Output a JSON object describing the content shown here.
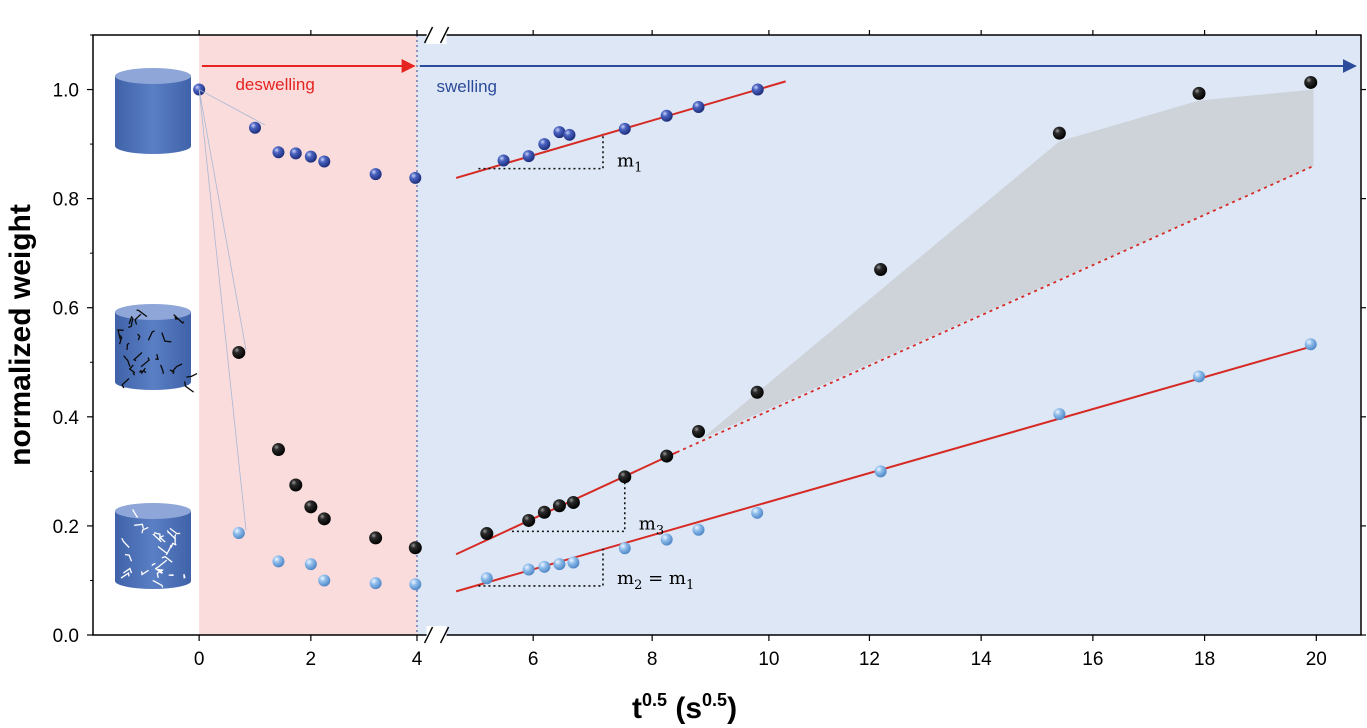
{
  "chart_data": {
    "type": "scatter",
    "title": "",
    "xlabel": "t",
    "xlabel_sup": "0.5",
    "xlabel_unit_open": " (s",
    "xlabel_unit_sup": "0.5",
    "xlabel_unit_close": ")",
    "ylabel": "normalized weight",
    "xlim": [
      -1.9,
      20.8
    ],
    "ylim": [
      0.0,
      1.1
    ],
    "axis_break_at": 4,
    "swelling_scale": {
      "4": 3.9,
      "6": 5.98,
      "8": 8.11,
      "10": 10.2,
      "20": 20.0
    },
    "x_ticks": [
      "0",
      "2",
      "4",
      "6",
      "8",
      "10",
      "12",
      "14",
      "16",
      "18",
      "20"
    ],
    "y_ticks": [
      "0.0",
      "0.2",
      "0.4",
      "0.6",
      "0.8",
      "1.0"
    ],
    "regions": [
      {
        "name": "deswelling",
        "label": "deswelling",
        "x_range": [
          0,
          3.9
        ],
        "color": "#fadcdc",
        "label_color": "#e52421"
      },
      {
        "name": "swelling",
        "label": "swelling",
        "x_range": [
          3.9,
          20.8
        ],
        "color": "#dde7f5",
        "label_color": "#2c4b9a"
      }
    ],
    "series": [
      {
        "name": "dark blue",
        "color": "#3a54b0",
        "x": [
          0,
          1.0,
          1.42,
          1.73,
          2.0,
          2.24,
          3.16,
          3.87,
          5.45,
          5.9,
          6.18,
          6.45,
          6.63,
          7.62,
          8.37,
          8.94,
          10.0
        ],
        "y": [
          1.0,
          0.93,
          0.885,
          0.883,
          0.877,
          0.868,
          0.845,
          0.838,
          0.87,
          0.878,
          0.9,
          0.922,
          0.917,
          0.928,
          0.952,
          0.968,
          1.0
        ]
      },
      {
        "name": "black",
        "color": "#111111",
        "x": [
          0.71,
          1.42,
          1.73,
          2.0,
          2.24,
          3.16,
          3.87,
          5.15,
          5.9,
          6.18,
          6.45,
          6.7,
          7.62,
          8.37,
          8.94,
          9.99,
          12.2,
          15.4,
          17.9,
          19.9
        ],
        "y": [
          0.518,
          0.34,
          0.275,
          0.235,
          0.213,
          0.178,
          0.16,
          0.186,
          0.21,
          0.225,
          0.237,
          0.243,
          0.29,
          0.328,
          0.373,
          0.445,
          0.67,
          0.92,
          0.993,
          1.013
        ]
      },
      {
        "name": "light blue",
        "color": "#7fb2e8",
        "x": [
          0.71,
          1.42,
          2.0,
          2.24,
          3.16,
          3.87,
          5.15,
          5.9,
          6.18,
          6.45,
          6.7,
          7.62,
          8.37,
          8.94,
          9.99,
          12.2,
          15.4,
          17.9,
          19.9
        ],
        "y": [
          0.187,
          0.135,
          0.13,
          0.1,
          0.095,
          0.093,
          0.104,
          0.12,
          0.125,
          0.13,
          0.133,
          0.159,
          0.175,
          0.193,
          0.224,
          0.3,
          0.405,
          0.474,
          0.533
        ]
      }
    ],
    "fit_lines": [
      {
        "name": "fit-m1",
        "x": [
          4.6,
          10.5
        ],
        "y": [
          0.838,
          1.015
        ],
        "style": "solid"
      },
      {
        "name": "fit-m3",
        "x": [
          4.6,
          8.55
        ],
        "y": [
          0.148,
          0.335
        ],
        "style": "solid"
      },
      {
        "name": "fit-m3-extrapolated",
        "x": [
          8.55,
          19.95
        ],
        "y": [
          0.335,
          0.86
        ],
        "style": "dotted"
      },
      {
        "name": "fit-m2",
        "x": [
          4.6,
          19.95
        ],
        "y": [
          0.08,
          0.53
        ],
        "style": "solid"
      }
    ],
    "shaded_region": {
      "name": "excess-swelling",
      "color": "#cbcfd4",
      "polygon": [
        [
          9.0,
          0.36
        ],
        [
          15.4,
          0.905
        ],
        [
          17.9,
          0.98
        ],
        [
          19.95,
          1.0
        ],
        [
          19.95,
          0.86
        ],
        [
          9.0,
          0.36
        ]
      ]
    },
    "slope_triangles": [
      {
        "name": "m1",
        "label_main": "m",
        "label_sub": "1",
        "label_rest": "",
        "x0": 5.0,
        "y0": 0.855,
        "x1": 7.23,
        "y1": 0.92
      },
      {
        "name": "m3",
        "label_main": "m",
        "label_sub": "3",
        "label_rest": "",
        "x0": 5.6,
        "y0": 0.19,
        "x1": 7.62,
        "y1": 0.288
      },
      {
        "name": "m2",
        "label_main": "m",
        "label_sub": "2",
        "label_rest": " = m",
        "label_sub2": "1",
        "x0": 5.0,
        "y0": 0.09,
        "x1": 7.23,
        "y1": 0.158
      }
    ],
    "sample_icons": [
      {
        "name": "solid-gel-cylinder-icon",
        "style": "plain",
        "level": 1.0
      },
      {
        "name": "black-cracked-cylinder-icon",
        "style": "black-cracks",
        "level": 0.52
      },
      {
        "name": "white-cracked-cylinder-icon",
        "style": "white-cracks",
        "level": 0.15
      }
    ]
  }
}
